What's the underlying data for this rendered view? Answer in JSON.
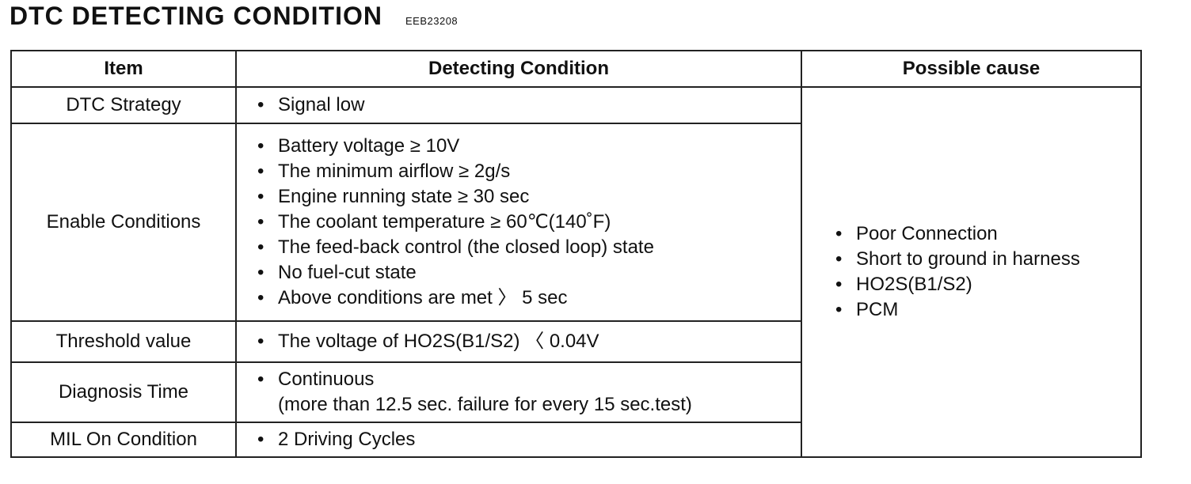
{
  "header": {
    "title": "DTC DETECTING CONDITION",
    "code": "EEB23208"
  },
  "table": {
    "columns": [
      "Item",
      "Detecting Condition",
      "Possible cause"
    ],
    "rows": [
      {
        "item": "DTC Strategy",
        "conditions": [
          "Signal low"
        ]
      },
      {
        "item": "Enable Conditions",
        "conditions": [
          "Battery voltage ≥  10V",
          "The minimum airflow ≥  2g/s",
          "Engine running state ≥  30 sec",
          "The coolant temperature ≥  60℃(140˚F)",
          "The feed-back control (the closed loop) state",
          "No fuel-cut state",
          "Above conditions are met 〉 5 sec"
        ]
      },
      {
        "item": "Threshold value",
        "conditions": [
          "The voltage of HO2S(B1/S2) 〈 0.04V"
        ]
      },
      {
        "item": "Diagnosis Time",
        "conditions": [
          "Continuous"
        ],
        "note": "(more than 12.5 sec. failure for every 15 sec.test)"
      },
      {
        "item": "MIL On Condition",
        "conditions": [
          "2 Driving Cycles"
        ]
      }
    ],
    "possible_causes": [
      "Poor Connection",
      "Short to ground in harness",
      "HO2S(B1/S2)",
      "PCM"
    ]
  }
}
